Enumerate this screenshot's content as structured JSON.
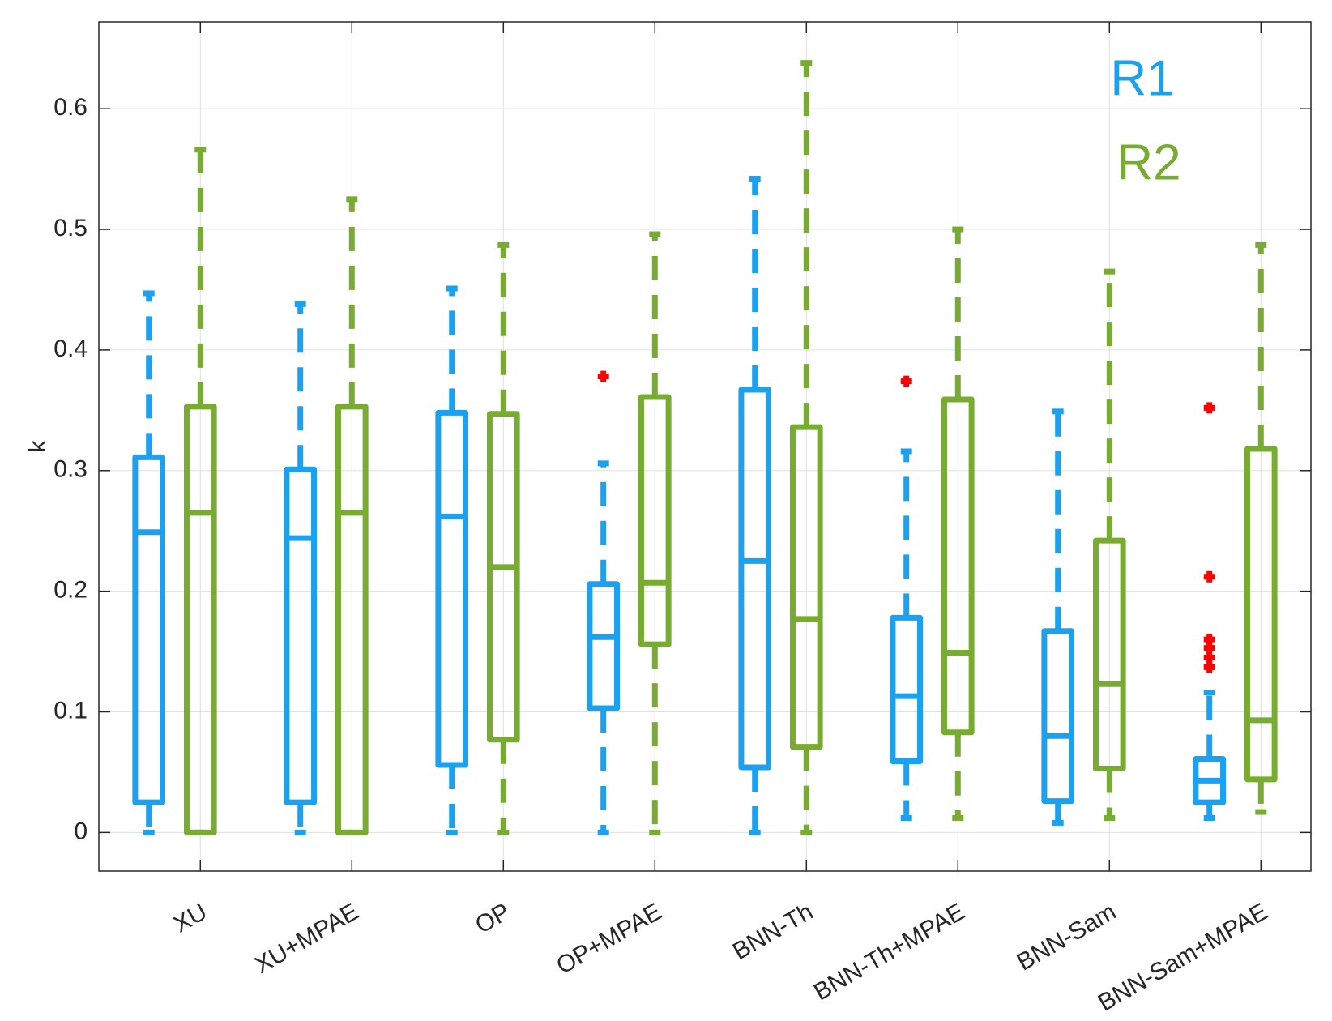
{
  "chart_data": {
    "type": "boxplot",
    "title": "",
    "xlabel": "",
    "ylabel": "k",
    "ylim": [
      -0.032,
      0.672
    ],
    "yticks": [
      "0",
      "0.1",
      "0.2",
      "0.3",
      "0.4",
      "0.5",
      "0.6"
    ],
    "grid": true,
    "legend_position": "top-right",
    "categories": [
      "XU",
      "XU+MPAE",
      "OP",
      "OP+MPAE",
      "BNN-Th",
      "BNN-Th+MPAE",
      "BNN-Sam",
      "BNN-Sam+MPAE"
    ],
    "series": [
      {
        "name": "R1",
        "color": "#1ba1f2",
        "boxes": [
          {
            "whisker_low": 0.0,
            "q1": 0.025,
            "median": 0.249,
            "q3": 0.311,
            "whisker_high": 0.447,
            "outliers": []
          },
          {
            "whisker_low": 0.0,
            "q1": 0.025,
            "median": 0.244,
            "q3": 0.301,
            "whisker_high": 0.438,
            "outliers": []
          },
          {
            "whisker_low": 0.0,
            "q1": 0.056,
            "median": 0.262,
            "q3": 0.348,
            "whisker_high": 0.451,
            "outliers": []
          },
          {
            "whisker_low": 0.0,
            "q1": 0.103,
            "median": 0.162,
            "q3": 0.206,
            "whisker_high": 0.306,
            "outliers": [
              0.378
            ]
          },
          {
            "whisker_low": 0.0,
            "q1": 0.054,
            "median": 0.225,
            "q3": 0.367,
            "whisker_high": 0.542,
            "outliers": []
          },
          {
            "whisker_low": 0.012,
            "q1": 0.059,
            "median": 0.113,
            "q3": 0.178,
            "whisker_high": 0.316,
            "outliers": [
              0.374
            ]
          },
          {
            "whisker_low": 0.008,
            "q1": 0.026,
            "median": 0.08,
            "q3": 0.167,
            "whisker_high": 0.349,
            "outliers": []
          },
          {
            "whisker_low": 0.012,
            "q1": 0.025,
            "median": 0.043,
            "q3": 0.061,
            "whisker_high": 0.116,
            "outliers": [
              0.352,
              0.212,
              0.16,
              0.153,
              0.145,
              0.137
            ]
          }
        ]
      },
      {
        "name": "R2",
        "color": "#77ac30",
        "boxes": [
          {
            "whisker_low": 0.0,
            "q1": 0.0,
            "median": 0.265,
            "q3": 0.353,
            "whisker_high": 0.566,
            "outliers": []
          },
          {
            "whisker_low": 0.0,
            "q1": 0.0,
            "median": 0.265,
            "q3": 0.353,
            "whisker_high": 0.525,
            "outliers": []
          },
          {
            "whisker_low": 0.0,
            "q1": 0.077,
            "median": 0.22,
            "q3": 0.347,
            "whisker_high": 0.487,
            "outliers": []
          },
          {
            "whisker_low": 0.0,
            "q1": 0.156,
            "median": 0.207,
            "q3": 0.361,
            "whisker_high": 0.496,
            "outliers": []
          },
          {
            "whisker_low": 0.0,
            "q1": 0.071,
            "median": 0.177,
            "q3": 0.336,
            "whisker_high": 0.638,
            "outliers": []
          },
          {
            "whisker_low": 0.012,
            "q1": 0.083,
            "median": 0.149,
            "q3": 0.359,
            "whisker_high": 0.5,
            "outliers": []
          },
          {
            "whisker_low": 0.012,
            "q1": 0.053,
            "median": 0.123,
            "q3": 0.242,
            "whisker_high": 0.465,
            "outliers": []
          },
          {
            "whisker_low": 0.017,
            "q1": 0.044,
            "median": 0.093,
            "q3": 0.318,
            "whisker_high": 0.487,
            "outliers": []
          }
        ]
      }
    ],
    "outlier_color": "#ff0000",
    "grid_color": "#e0e0e0",
    "axis_color": "#262626"
  }
}
